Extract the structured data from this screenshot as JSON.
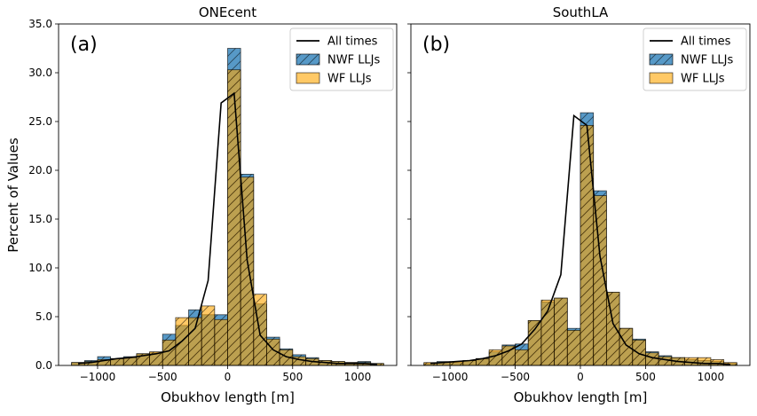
{
  "colors": {
    "nwf": "#1f77b4",
    "wf": "#ffa500",
    "line": "#000000"
  },
  "shared": {
    "ylabel": "Percent of Values",
    "xlabel": "Obukhov length [m]",
    "yticks": [
      "0.0",
      "5.0",
      "10.0",
      "15.0",
      "20.0",
      "25.0",
      "30.0",
      "35.0"
    ],
    "xticks": [
      "−1000",
      "−500",
      "0",
      "500",
      "1000"
    ],
    "legend": [
      "All times",
      "NWF LLJs",
      "WF LLJs"
    ]
  },
  "chart_data": [
    {
      "type": "bar",
      "title": "ONEcent",
      "panel_label": "(a)",
      "xlabel": "Obukhov length [m]",
      "ylabel": "Percent of Values",
      "xlim": [
        -1300,
        1300
      ],
      "ylim": [
        0,
        35
      ],
      "bin_centers": [
        -1150,
        -1050,
        -950,
        -850,
        -750,
        -650,
        -550,
        -450,
        -350,
        -250,
        -150,
        -50,
        50,
        150,
        250,
        350,
        450,
        550,
        650,
        750,
        850,
        950,
        1050,
        1150
      ],
      "bin_width": 100,
      "series": [
        {
          "name": "NWF LLJs",
          "values": [
            0.3,
            0.5,
            0.9,
            0.7,
            0.9,
            1.2,
            1.3,
            3.2,
            4.1,
            5.7,
            5.2,
            5.2,
            32.5,
            19.6,
            6.3,
            2.9,
            1.7,
            1.1,
            0.8,
            0.5,
            0.4,
            0.3,
            0.4,
            0.2
          ]
        },
        {
          "name": "WF LLJs",
          "values": [
            0.3,
            0.4,
            0.6,
            0.7,
            0.8,
            1.2,
            1.4,
            2.6,
            4.9,
            4.9,
            6.1,
            4.7,
            30.3,
            19.3,
            7.3,
            2.7,
            1.6,
            0.9,
            0.7,
            0.5,
            0.4,
            0.3,
            0.3,
            0.2
          ]
        },
        {
          "name": "All times",
          "x": [
            -1150,
            -1050,
            -950,
            -850,
            -750,
            -650,
            -550,
            -450,
            -350,
            -250,
            -150,
            -50,
            50,
            150,
            250,
            350,
            450,
            550,
            650,
            750,
            850,
            950,
            1050,
            1150
          ],
          "values": [
            0.2,
            0.3,
            0.5,
            0.7,
            0.8,
            1.0,
            1.2,
            1.5,
            2.5,
            3.8,
            8.7,
            26.9,
            27.9,
            10.8,
            3.1,
            1.6,
            0.9,
            0.6,
            0.4,
            0.3,
            0.2,
            0.2,
            0.2,
            0.1
          ]
        }
      ]
    },
    {
      "type": "bar",
      "title": "SouthLA",
      "panel_label": "(b)",
      "xlabel": "Obukhov length [m]",
      "ylabel": "Percent of Values",
      "xlim": [
        -1300,
        1300
      ],
      "ylim": [
        0,
        35
      ],
      "bin_centers": [
        -1150,
        -1050,
        -950,
        -850,
        -750,
        -650,
        -550,
        -450,
        -350,
        -250,
        -150,
        -50,
        50,
        150,
        250,
        350,
        450,
        550,
        650,
        750,
        850,
        950,
        1050,
        1150
      ],
      "bin_width": 100,
      "series": [
        {
          "name": "NWF LLJs",
          "values": [
            0.2,
            0.4,
            0.3,
            0.5,
            0.7,
            1.4,
            2.1,
            2.2,
            4.6,
            6.5,
            6.9,
            3.8,
            25.9,
            17.9,
            7.5,
            3.8,
            2.7,
            1.4,
            1.0,
            0.8,
            0.6,
            0.5,
            0.4,
            0.2
          ]
        },
        {
          "name": "WF LLJs",
          "values": [
            0.3,
            0.3,
            0.4,
            0.5,
            0.7,
            1.6,
            2.0,
            1.6,
            4.6,
            6.7,
            6.9,
            3.6,
            24.6,
            17.4,
            7.5,
            3.8,
            2.6,
            1.3,
            0.9,
            0.8,
            0.8,
            0.8,
            0.6,
            0.3
          ]
        },
        {
          "name": "All times",
          "x": [
            -1150,
            -1050,
            -950,
            -850,
            -750,
            -650,
            -550,
            -450,
            -350,
            -250,
            -150,
            -50,
            50,
            150,
            250,
            350,
            450,
            550,
            650,
            750,
            850,
            950,
            1050,
            1150
          ],
          "values": [
            0.2,
            0.3,
            0.4,
            0.5,
            0.7,
            1.0,
            1.5,
            2.2,
            3.7,
            5.6,
            9.3,
            25.6,
            24.6,
            11.2,
            4.3,
            2.1,
            1.2,
            0.8,
            0.6,
            0.4,
            0.3,
            0.2,
            0.2,
            0.1
          ]
        }
      ]
    }
  ]
}
